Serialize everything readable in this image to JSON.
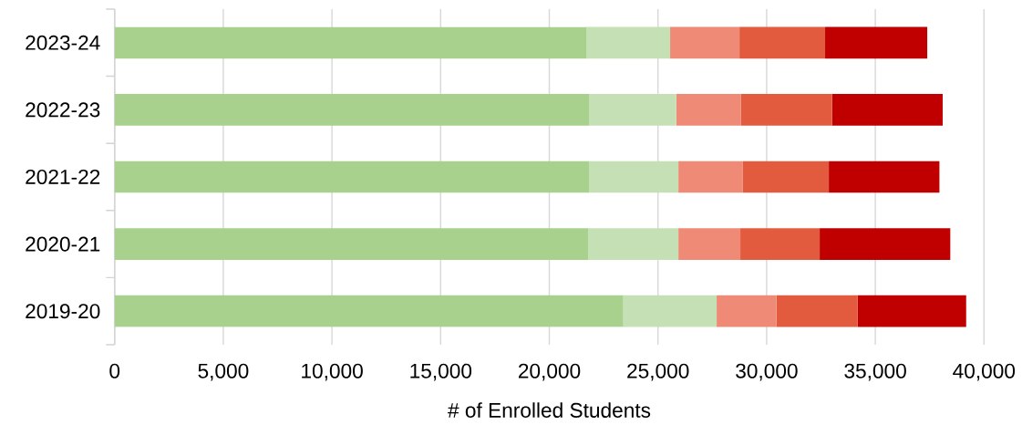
{
  "chart_data": {
    "type": "bar",
    "orientation": "horizontal",
    "stacked": true,
    "xlabel": "# of Enrolled Students",
    "categories": [
      "2023-24",
      "2022-23",
      "2021-22",
      "2020-21",
      "2019-20"
    ],
    "series": [
      {
        "color": "#a9d18e",
        "values": [
          21700,
          21830,
          21830,
          21790,
          23410
        ]
      },
      {
        "color": "#c5e0b4",
        "values": [
          3860,
          4010,
          4110,
          4150,
          4290
        ]
      },
      {
        "color": "#ee8a76",
        "values": [
          3190,
          2980,
          2950,
          2850,
          2750
        ]
      },
      {
        "color": "#e35b3e",
        "values": [
          3940,
          4190,
          3970,
          3650,
          3740
        ]
      },
      {
        "color": "#c00000",
        "values": [
          4700,
          5090,
          5090,
          6010,
          4990
        ]
      }
    ],
    "xlim": [
      0,
      40000
    ],
    "xticks": [
      0,
      {
        "value": 5000,
        "label": "5,000"
      },
      {
        "value": 10000,
        "label": "10,000"
      },
      {
        "value": 15000,
        "label": "15,000"
      },
      {
        "value": 20000,
        "label": "20,000"
      },
      {
        "value": 25000,
        "label": "25,000"
      },
      {
        "value": 30000,
        "label": "30,000"
      },
      {
        "value": 35000,
        "label": "35,000"
      },
      {
        "value": 40000,
        "label": "40,000"
      }
    ],
    "grid": "x"
  }
}
